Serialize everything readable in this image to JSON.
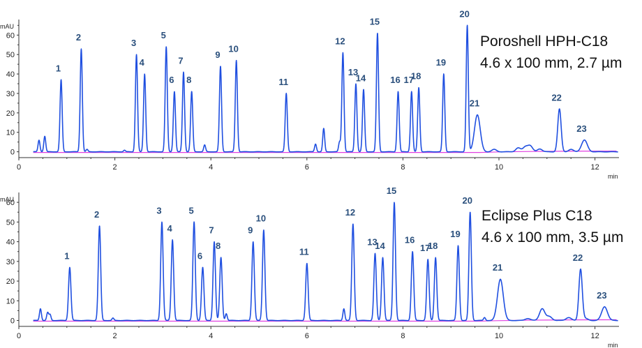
{
  "chart_data": [
    {
      "type": "line",
      "title": "Poroshell HPH-C18",
      "subtitle": "4.6 x 100 mm, 2.7 µm",
      "ylabel": "mAU",
      "xlabel": "min",
      "xlim": [
        0,
        12.5
      ],
      "ylim": [
        -3,
        68
      ],
      "x_ticks": [
        0,
        2,
        4,
        6,
        8,
        10,
        12
      ],
      "y_ticks": [
        0,
        10,
        20,
        30,
        40,
        50,
        60
      ],
      "colors": {
        "signal": "#1f4fe0",
        "baseline": "#e040e0",
        "labels": "#2a4f7c"
      },
      "peaks": [
        {
          "label": "1",
          "t": 0.88,
          "h": 37
        },
        {
          "label": "2",
          "t": 1.3,
          "h": 53
        },
        {
          "label": "3",
          "t": 2.45,
          "h": 50
        },
        {
          "label": "4",
          "t": 2.62,
          "h": 40
        },
        {
          "label": "5",
          "t": 3.07,
          "h": 54
        },
        {
          "label": "6",
          "t": 3.24,
          "h": 31
        },
        {
          "label": "7",
          "t": 3.43,
          "h": 41
        },
        {
          "label": "8",
          "t": 3.6,
          "h": 31
        },
        {
          "label": "9",
          "t": 4.2,
          "h": 44
        },
        {
          "label": "10",
          "t": 4.53,
          "h": 47
        },
        {
          "label": "11",
          "t": 5.57,
          "h": 30
        },
        {
          "label": "12",
          "t": 6.75,
          "h": 51
        },
        {
          "label": "13",
          "t": 7.02,
          "h": 35
        },
        {
          "label": "14",
          "t": 7.18,
          "h": 32
        },
        {
          "label": "15",
          "t": 7.47,
          "h": 61
        },
        {
          "label": "16",
          "t": 7.9,
          "h": 31
        },
        {
          "label": "17",
          "t": 8.18,
          "h": 31
        },
        {
          "label": "18",
          "t": 8.33,
          "h": 33
        },
        {
          "label": "19",
          "t": 8.85,
          "h": 40
        },
        {
          "label": "20",
          "t": 9.34,
          "h": 65
        },
        {
          "label": "21",
          "t": 9.55,
          "h": 19
        },
        {
          "label": "22",
          "t": 11.26,
          "h": 22
        },
        {
          "label": "23",
          "t": 11.78,
          "h": 6
        }
      ],
      "minor_peaks": [
        {
          "t": 0.42,
          "h": 6
        },
        {
          "t": 0.54,
          "h": 8
        },
        {
          "t": 1.42,
          "h": 1.2
        },
        {
          "t": 2.2,
          "h": 0.8
        },
        {
          "t": 3.87,
          "h": 3.5
        },
        {
          "t": 6.18,
          "h": 4
        },
        {
          "t": 6.35,
          "h": 12
        },
        {
          "t": 6.68,
          "h": 5
        },
        {
          "t": 9.9,
          "h": 1.2
        },
        {
          "t": 10.4,
          "h": 2
        },
        {
          "t": 10.55,
          "h": 2.5
        },
        {
          "t": 10.65,
          "h": 3
        },
        {
          "t": 10.85,
          "h": 1.5
        },
        {
          "t": 11.5,
          "h": 1.2
        }
      ]
    },
    {
      "type": "line",
      "title": "Eclipse Plus C18",
      "subtitle": "4.6 x 100 mm, 3.5 µm",
      "ylabel": "mAU",
      "xlabel": "min",
      "xlim": [
        0,
        12.5
      ],
      "ylim": [
        -3,
        65
      ],
      "x_ticks": [
        0,
        2,
        4,
        6,
        8,
        10,
        12
      ],
      "y_ticks": [
        0,
        10,
        20,
        30,
        40,
        50,
        60
      ],
      "colors": {
        "signal": "#1f4fe0",
        "baseline": "#e040e0",
        "labels": "#2a4f7c"
      },
      "peaks": [
        {
          "label": "1",
          "t": 1.06,
          "h": 27
        },
        {
          "label": "2",
          "t": 1.68,
          "h": 48
        },
        {
          "label": "3",
          "t": 2.98,
          "h": 50
        },
        {
          "label": "4",
          "t": 3.2,
          "h": 41
        },
        {
          "label": "5",
          "t": 3.65,
          "h": 50
        },
        {
          "label": "6",
          "t": 3.83,
          "h": 27
        },
        {
          "label": "7",
          "t": 4.07,
          "h": 40
        },
        {
          "label": "8",
          "t": 4.21,
          "h": 32
        },
        {
          "label": "9",
          "t": 4.88,
          "h": 40
        },
        {
          "label": "10",
          "t": 5.1,
          "h": 46
        },
        {
          "label": "11",
          "t": 6.0,
          "h": 29
        },
        {
          "label": "12",
          "t": 6.96,
          "h": 49
        },
        {
          "label": "13",
          "t": 7.42,
          "h": 34
        },
        {
          "label": "14",
          "t": 7.58,
          "h": 32
        },
        {
          "label": "15",
          "t": 7.82,
          "h": 60
        },
        {
          "label": "16",
          "t": 8.2,
          "h": 35
        },
        {
          "label": "17",
          "t": 8.52,
          "h": 31
        },
        {
          "label": "18",
          "t": 8.68,
          "h": 32
        },
        {
          "label": "19",
          "t": 9.15,
          "h": 38
        },
        {
          "label": "20",
          "t": 9.4,
          "h": 55
        },
        {
          "label": "21",
          "t": 10.03,
          "h": 21
        },
        {
          "label": "22",
          "t": 11.7,
          "h": 26
        },
        {
          "label": "23",
          "t": 12.2,
          "h": 7
        }
      ],
      "minor_peaks": [
        {
          "t": 0.45,
          "h": 6
        },
        {
          "t": 0.6,
          "h": 4
        },
        {
          "t": 0.65,
          "h": 3
        },
        {
          "t": 1.96,
          "h": 1.2
        },
        {
          "t": 4.32,
          "h": 3.5
        },
        {
          "t": 6.77,
          "h": 6
        },
        {
          "t": 9.7,
          "h": 1.5
        },
        {
          "t": 10.6,
          "h": 1
        },
        {
          "t": 10.9,
          "h": 6
        },
        {
          "t": 11.05,
          "h": 2
        },
        {
          "t": 11.45,
          "h": 1.5
        },
        {
          "t": 11.8,
          "h": 1
        }
      ]
    }
  ]
}
